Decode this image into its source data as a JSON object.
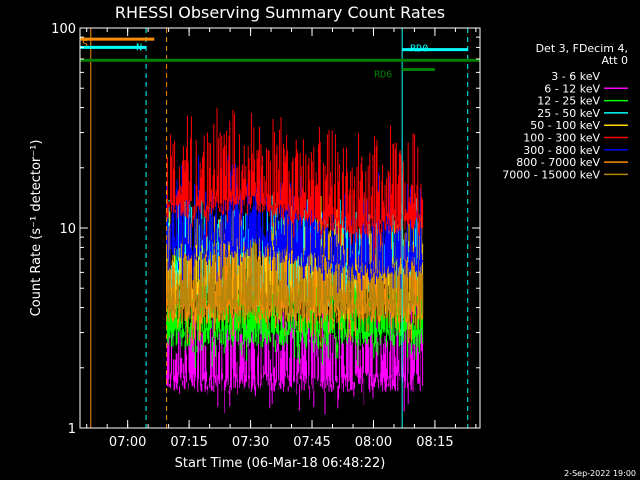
{
  "chart_data": {
    "type": "line",
    "title": "RHESSI Observing Summary Count Rates",
    "xlabel": "Start Time (06-Mar-18 06:48:22)",
    "ylabel": "Count Rate (s⁻¹ detector⁻¹)",
    "yscale": "log",
    "ylim": [
      1,
      100
    ],
    "xlim": [
      "06:48:22",
      "08:26:00"
    ],
    "x_ticks": [
      "07:00",
      "07:15",
      "07:30",
      "07:45",
      "08:00",
      "08:15"
    ],
    "y_ticks": [
      "1",
      "10",
      "100"
    ],
    "grid": false,
    "legend_placement": "right",
    "legend_header": [
      "Det 3, FDecim 4,",
      "Att 0"
    ],
    "data_start": "07:09:30",
    "data_end": "08:12:00",
    "series": [
      {
        "name": "3 - 6 keV",
        "color": "#000000",
        "level": 1.9,
        "sparse": true
      },
      {
        "name": "6 - 12 keV",
        "color": "#ff00ff",
        "level": 2.5
      },
      {
        "name": "12 - 25 keV",
        "color": "#00ff00",
        "level": 4.2
      },
      {
        "name": "25 - 50 keV",
        "color": "#00ffff",
        "level": 7.5
      },
      {
        "name": "50 - 100 keV",
        "color": "#ffd700",
        "level": 7.0
      },
      {
        "name": "100 - 300 keV",
        "color": "#ff0000",
        "level": 18,
        "profile": [
          [
            0,
            18
          ],
          [
            0.35,
            20
          ],
          [
            0.5,
            17
          ],
          [
            0.75,
            14.5
          ],
          [
            1,
            16.5
          ]
        ]
      },
      {
        "name": "300 - 800 keV",
        "color": "#0000ff",
        "level": 11,
        "profile": [
          [
            0,
            11
          ],
          [
            0.35,
            12
          ],
          [
            0.5,
            10.5
          ],
          [
            0.75,
            8.8
          ],
          [
            1,
            9.8
          ]
        ]
      },
      {
        "name": "800 - 7000 keV",
        "color": "#ff8c00",
        "level": 5.5
      },
      {
        "name": "7000 - 15000 keV",
        "color": "#b8860b",
        "level": 5.8
      }
    ],
    "flags": [
      {
        "label": "S",
        "color": "#ff8c00",
        "start": "06:48:22",
        "end": "07:06:30",
        "level": 88
      },
      {
        "label": "N",
        "color": "#00ffff",
        "start": "06:48:22",
        "end": "07:04:30",
        "level": 80
      },
      {
        "label": "RD0",
        "color": "#00ffff",
        "start": "08:07:00",
        "end": "08:23:00",
        "level": 78
      },
      {
        "label": "",
        "color": "#008000",
        "start": "06:48:22",
        "end": "08:26:00",
        "level": 69
      },
      {
        "label": "RD6",
        "color": "#008000",
        "start": "08:07:00",
        "end": "08:15:00",
        "level": 62
      }
    ],
    "vlines": [
      {
        "time": "06:51:00",
        "color": "#ff8c00",
        "style": "solid"
      },
      {
        "time": "07:04:30",
        "color": "#00ffff",
        "style": "dashed"
      },
      {
        "time": "07:09:30",
        "color": "#ff8c00",
        "style": "dashed"
      },
      {
        "time": "08:07:00",
        "color": "#00ffff",
        "style": "solid"
      },
      {
        "time": "08:23:00",
        "color": "#00ffff",
        "style": "dashed"
      }
    ]
  },
  "footer": {
    "date_stamp": "2-Sep-2022 19:00"
  }
}
